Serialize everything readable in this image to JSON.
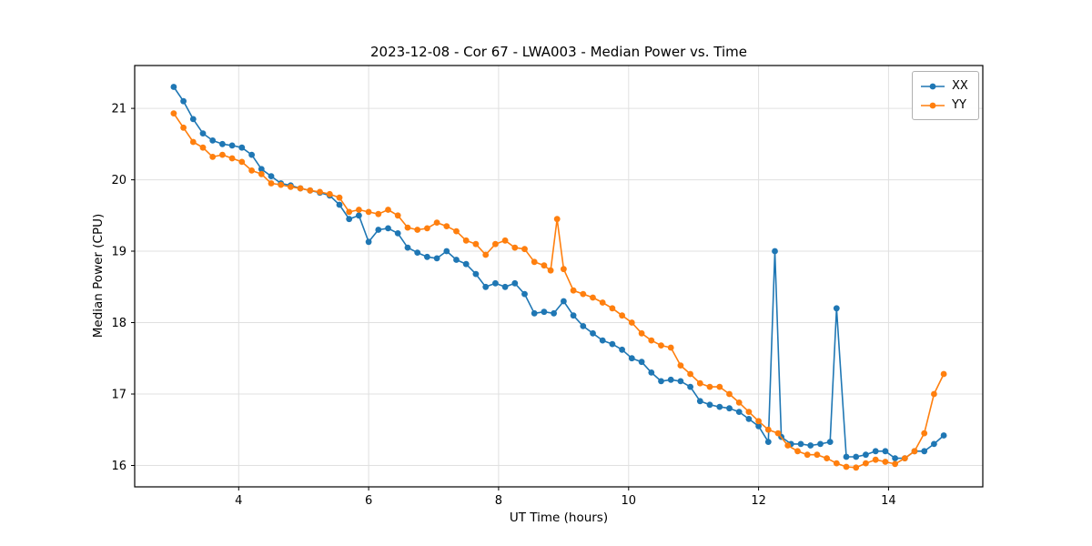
{
  "chart_data": {
    "type": "line",
    "title": "2023-12-08 - Cor 67 - LWA003 - Median Power vs. Time",
    "xlabel": "UT Time (hours)",
    "ylabel": "Median Power (CPU)",
    "xlim": [
      2.4,
      15.45
    ],
    "ylim": [
      15.7,
      21.6
    ],
    "xticks": [
      4,
      6,
      8,
      10,
      12,
      14
    ],
    "yticks": [
      16,
      17,
      18,
      19,
      20,
      21
    ],
    "grid": true,
    "grid_color": "#e0e0e0",
    "axis_color": "#000000",
    "legend": {
      "position": "upper right",
      "entries": [
        "XX",
        "YY"
      ]
    },
    "series": [
      {
        "name": "XX",
        "color": "#1f77b4",
        "marker": "circle",
        "x": [
          3.0,
          3.15,
          3.3,
          3.45,
          3.6,
          3.75,
          3.9,
          4.05,
          4.2,
          4.35,
          4.5,
          4.65,
          4.8,
          4.95,
          5.1,
          5.25,
          5.4,
          5.55,
          5.7,
          5.85,
          6.0,
          6.15,
          6.3,
          6.45,
          6.6,
          6.75,
          6.9,
          7.05,
          7.2,
          7.35,
          7.5,
          7.65,
          7.8,
          7.95,
          8.1,
          8.25,
          8.4,
          8.55,
          8.7,
          8.85,
          9.0,
          9.15,
          9.3,
          9.45,
          9.6,
          9.75,
          9.9,
          10.05,
          10.2,
          10.35,
          10.5,
          10.65,
          10.8,
          10.95,
          11.1,
          11.25,
          11.4,
          11.55,
          11.7,
          11.85,
          12.0,
          12.15,
          12.25,
          12.35,
          12.5,
          12.65,
          12.8,
          12.95,
          13.1,
          13.2,
          13.35,
          13.5,
          13.65,
          13.8,
          13.95,
          14.1,
          14.25,
          14.4,
          14.55,
          14.7,
          14.85
        ],
        "y": [
          21.3,
          21.1,
          20.85,
          20.65,
          20.55,
          20.5,
          20.48,
          20.45,
          20.35,
          20.15,
          20.05,
          19.95,
          19.92,
          19.88,
          19.85,
          19.82,
          19.78,
          19.65,
          19.45,
          19.5,
          19.13,
          19.3,
          19.32,
          19.25,
          19.05,
          18.98,
          18.92,
          18.9,
          19.0,
          18.88,
          18.82,
          18.68,
          18.5,
          18.55,
          18.5,
          18.55,
          18.4,
          18.13,
          18.15,
          18.13,
          18.3,
          18.1,
          17.95,
          17.85,
          17.75,
          17.7,
          17.62,
          17.5,
          17.45,
          17.3,
          17.18,
          17.2,
          17.18,
          17.1,
          16.9,
          16.85,
          16.82,
          16.8,
          16.75,
          16.65,
          16.55,
          16.33,
          19.0,
          16.4,
          16.3,
          16.3,
          16.28,
          16.3,
          16.33,
          18.2,
          16.12,
          16.12,
          16.15,
          16.2,
          16.2,
          16.1,
          16.1,
          16.2,
          16.2,
          16.3,
          16.42
        ]
      },
      {
        "name": "YY",
        "color": "#ff7f0e",
        "marker": "circle",
        "x": [
          3.0,
          3.15,
          3.3,
          3.45,
          3.6,
          3.75,
          3.9,
          4.05,
          4.2,
          4.35,
          4.5,
          4.65,
          4.8,
          4.95,
          5.1,
          5.25,
          5.4,
          5.55,
          5.7,
          5.85,
          6.0,
          6.15,
          6.3,
          6.45,
          6.6,
          6.75,
          6.9,
          7.05,
          7.2,
          7.35,
          7.5,
          7.65,
          7.8,
          7.95,
          8.1,
          8.25,
          8.4,
          8.55,
          8.7,
          8.8,
          8.9,
          9.0,
          9.15,
          9.3,
          9.45,
          9.6,
          9.75,
          9.9,
          10.05,
          10.2,
          10.35,
          10.5,
          10.65,
          10.8,
          10.95,
          11.1,
          11.25,
          11.4,
          11.55,
          11.7,
          11.85,
          12.0,
          12.15,
          12.3,
          12.45,
          12.6,
          12.75,
          12.9,
          13.05,
          13.2,
          13.35,
          13.5,
          13.65,
          13.8,
          13.95,
          14.1,
          14.25,
          14.4,
          14.55,
          14.7,
          14.85
        ],
        "y": [
          20.93,
          20.73,
          20.53,
          20.45,
          20.32,
          20.35,
          20.3,
          20.25,
          20.13,
          20.08,
          19.95,
          19.93,
          19.9,
          19.88,
          19.85,
          19.83,
          19.8,
          19.75,
          19.55,
          19.58,
          19.55,
          19.52,
          19.58,
          19.5,
          19.33,
          19.3,
          19.32,
          19.4,
          19.35,
          19.28,
          19.15,
          19.1,
          18.95,
          19.1,
          19.15,
          19.05,
          19.03,
          18.85,
          18.8,
          18.73,
          19.45,
          18.75,
          18.45,
          18.4,
          18.35,
          18.28,
          18.2,
          18.1,
          18.0,
          17.85,
          17.75,
          17.68,
          17.65,
          17.4,
          17.28,
          17.15,
          17.1,
          17.1,
          17.0,
          16.88,
          16.75,
          16.62,
          16.5,
          16.45,
          16.28,
          16.2,
          16.15,
          16.15,
          16.1,
          16.03,
          15.98,
          15.97,
          16.03,
          16.08,
          16.05,
          16.02,
          16.1,
          16.2,
          16.45,
          17.0,
          17.28
        ]
      }
    ]
  }
}
